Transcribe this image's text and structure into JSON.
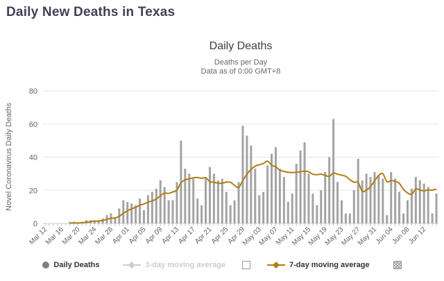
{
  "page": {
    "title": "Daily New Deaths in Texas"
  },
  "chart_data": {
    "type": "bar",
    "title": "Daily Deaths",
    "subtitle": [
      "Deaths per Day",
      "Data as of 0:00 GMT+8"
    ],
    "ylabel": "Novel Coronavirus Daily Deaths",
    "xlabel": "",
    "ylim": [
      0,
      80
    ],
    "yticks": [
      0,
      20,
      40,
      60,
      80
    ],
    "grid": true,
    "legend_position": "bottom",
    "x_tick_labels": [
      "Mar 12",
      "Mar 16",
      "Mar 20",
      "Mar 24",
      "Mar 28",
      "Apr 01",
      "Apr 05",
      "Apr 09",
      "Apr 13",
      "Apr 17",
      "Apr 21",
      "Apr 25",
      "Apr 29",
      "May 03",
      "May 07",
      "May 11",
      "May 15",
      "May 19",
      "May 23",
      "May 27",
      "May 31",
      "Jun 04",
      "Jun 08",
      "Jun 12"
    ],
    "categories": [
      "Mar 12",
      "Mar 13",
      "Mar 14",
      "Mar 15",
      "Mar 16",
      "Mar 17",
      "Mar 18",
      "Mar 19",
      "Mar 20",
      "Mar 21",
      "Mar 22",
      "Mar 23",
      "Mar 24",
      "Mar 25",
      "Mar 26",
      "Mar 27",
      "Mar 28",
      "Mar 29",
      "Mar 30",
      "Mar 31",
      "Apr 01",
      "Apr 02",
      "Apr 03",
      "Apr 04",
      "Apr 05",
      "Apr 06",
      "Apr 07",
      "Apr 08",
      "Apr 09",
      "Apr 10",
      "Apr 11",
      "Apr 12",
      "Apr 13",
      "Apr 14",
      "Apr 15",
      "Apr 16",
      "Apr 17",
      "Apr 18",
      "Apr 19",
      "Apr 20",
      "Apr 21",
      "Apr 22",
      "Apr 23",
      "Apr 24",
      "Apr 25",
      "Apr 26",
      "Apr 27",
      "Apr 28",
      "Apr 29",
      "Apr 30",
      "May 01",
      "May 02",
      "May 03",
      "May 04",
      "May 05",
      "May 06",
      "May 07",
      "May 08",
      "May 09",
      "May 10",
      "May 11",
      "May 12",
      "May 13",
      "May 14",
      "May 15",
      "May 16",
      "May 17",
      "May 18",
      "May 19",
      "May 20",
      "May 21",
      "May 22",
      "May 23",
      "May 24",
      "May 25",
      "May 26",
      "May 27",
      "May 28",
      "May 29",
      "May 30",
      "May 31",
      "Jun 01",
      "Jun 02",
      "Jun 03",
      "Jun 04",
      "Jun 05",
      "Jun 06",
      "Jun 07",
      "Jun 08",
      "Jun 09",
      "Jun 10",
      "Jun 11",
      "Jun 12",
      "Jun 13",
      "Jun 14",
      "Jun 15"
    ],
    "series": [
      {
        "name": "Daily Deaths",
        "type": "bar",
        "color": "#a3a3a3",
        "visible": true,
        "values": [
          0,
          0,
          0,
          0,
          0,
          0,
          1,
          1,
          0,
          1,
          2,
          2,
          2,
          2,
          3,
          5,
          6,
          3,
          9,
          14,
          13,
          12,
          11,
          15,
          8,
          17,
          19,
          21,
          26,
          22,
          14,
          14,
          25,
          50,
          33,
          30,
          27,
          15,
          11,
          27,
          34,
          30,
          26,
          27,
          19,
          11,
          14,
          25,
          59,
          53,
          47,
          33,
          17,
          19,
          35,
          42,
          46,
          33,
          28,
          13,
          18,
          36,
          44,
          49,
          30,
          18,
          11,
          20,
          31,
          40,
          63,
          25,
          14,
          6,
          6,
          20,
          39,
          26,
          30,
          28,
          31,
          29,
          27,
          5,
          31,
          27,
          19,
          6,
          14,
          21,
          28,
          26,
          24,
          22,
          6,
          18
        ]
      },
      {
        "name": "3-day moving average",
        "type": "line",
        "color": "#cccccc",
        "visible": false,
        "window": 3
      },
      {
        "name": "7-day moving average",
        "type": "line",
        "color": "#b07d11",
        "visible": true,
        "window": 7
      }
    ],
    "colors": {
      "bar": "#a3a3a3",
      "line7": "#b07d11",
      "disabled": "#cccccc",
      "grid": "#e6e6e6",
      "axis": "#d0d0d0",
      "tick": "#c0c0c0",
      "axis_label": "#606060",
      "title": "#3f4156"
    }
  }
}
